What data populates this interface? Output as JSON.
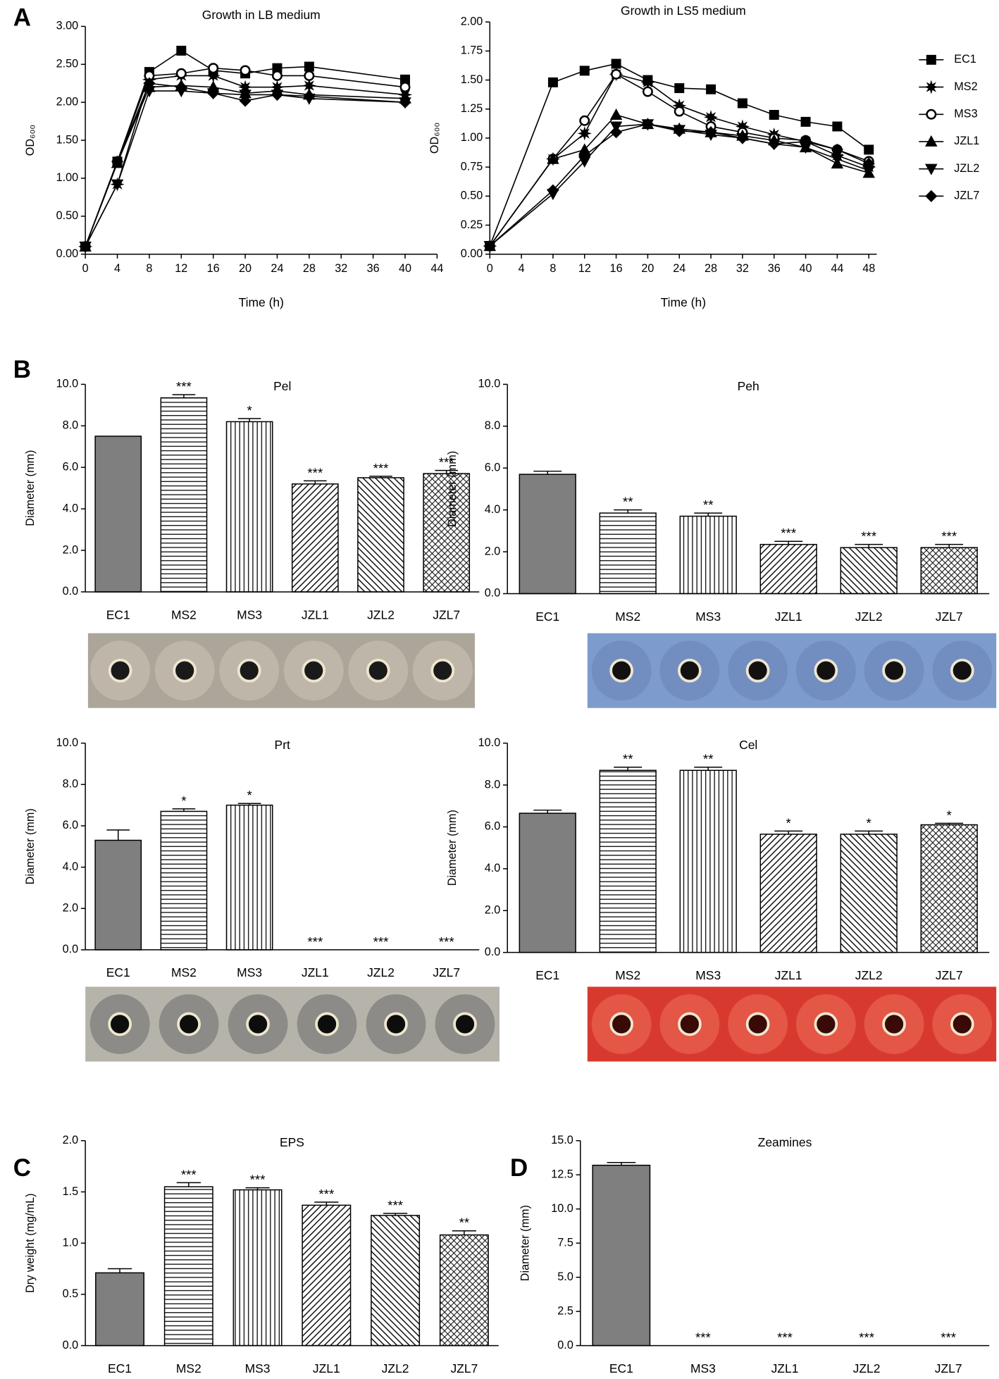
{
  "chart_data": [
    {
      "type": "line",
      "panel": "A",
      "title": "Growth in LB medium",
      "xlabel": "Time (h)",
      "ylabel": "OD₆₀₀",
      "x": [
        0,
        4,
        8,
        12,
        16,
        20,
        24,
        28,
        40
      ],
      "xlim": [
        0,
        44
      ],
      "xticks": [
        0,
        4,
        8,
        12,
        16,
        20,
        24,
        28,
        32,
        36,
        40,
        44
      ],
      "ylim": [
        0,
        3
      ],
      "yticks": [
        {
          "value": 0,
          "label": "0.00"
        },
        {
          "value": 0.5,
          "label": "0.50"
        },
        {
          "value": 1,
          "label": "1.00"
        },
        {
          "value": 1.5,
          "label": "1.50"
        },
        {
          "value": 2,
          "label": "2.00"
        },
        {
          "value": 2.5,
          "label": "2.50"
        },
        {
          "value": 3,
          "label": "3.00"
        }
      ],
      "series": [
        {
          "marker": "square",
          "color": "#000000",
          "values": [
            0.1,
            1.22,
            2.4,
            2.68,
            2.42,
            2.38,
            2.45,
            2.47,
            2.3
          ]
        },
        {
          "marker": "star",
          "color": "#000000",
          "values": [
            0.1,
            0.92,
            2.3,
            2.35,
            2.35,
            2.2,
            2.2,
            2.22,
            2.1
          ]
        },
        {
          "marker": "open-circle",
          "color": "#000000",
          "values": [
            0.1,
            1.22,
            2.35,
            2.38,
            2.45,
            2.42,
            2.35,
            2.35,
            2.2
          ]
        },
        {
          "marker": "triangle-up",
          "color": "#000000",
          "values": [
            0.1,
            1.2,
            2.2,
            2.22,
            2.2,
            2.12,
            2.15,
            2.1,
            2.05
          ]
        },
        {
          "marker": "triangle-down",
          "color": "#000000",
          "values": [
            0.1,
            0.92,
            2.15,
            2.15,
            2.12,
            2.1,
            2.1,
            2.05,
            2.0
          ]
        },
        {
          "marker": "diamond",
          "color": "#000000",
          "values": [
            0.1,
            1.22,
            2.25,
            2.2,
            2.12,
            2.02,
            2.1,
            2.08,
            2.0
          ]
        }
      ]
    },
    {
      "type": "line",
      "title": "Growth in LS5 medium",
      "xlabel": "Time (h)",
      "ylabel": "OD₆₀₀",
      "legend": "right",
      "x": [
        0,
        8,
        12,
        16,
        20,
        24,
        28,
        32,
        36,
        40,
        44,
        48
      ],
      "xlim": [
        0,
        49
      ],
      "xticks": [
        0,
        4,
        8,
        12,
        16,
        20,
        24,
        28,
        32,
        36,
        40,
        44,
        48
      ],
      "ylim": [
        0,
        2
      ],
      "yticks": [
        {
          "value": 0,
          "label": "0.00"
        },
        {
          "value": 0.25,
          "label": "0.25"
        },
        {
          "value": 0.5,
          "label": "0.50"
        },
        {
          "value": 0.75,
          "label": "0.75"
        },
        {
          "value": 1,
          "label": "1.00"
        },
        {
          "value": 1.25,
          "label": "1.25"
        },
        {
          "value": 1.5,
          "label": "1.50"
        },
        {
          "value": 1.75,
          "label": "1.75"
        },
        {
          "value": 2,
          "label": "2.00"
        }
      ],
      "series": [
        {
          "name": "EC1",
          "marker": "square",
          "color": "#000000",
          "values": [
            0.07,
            1.48,
            1.58,
            1.64,
            1.5,
            1.43,
            1.42,
            1.3,
            1.2,
            1.14,
            1.1,
            0.9
          ]
        },
        {
          "name": "MS2",
          "marker": "star",
          "color": "#000000",
          "values": [
            0.07,
            0.82,
            1.04,
            1.55,
            1.48,
            1.28,
            1.18,
            1.1,
            1.03,
            0.97,
            0.85,
            0.75
          ]
        },
        {
          "name": "MS3",
          "marker": "open-circle",
          "color": "#000000",
          "values": [
            0.07,
            0.82,
            1.15,
            1.55,
            1.4,
            1.23,
            1.1,
            1.05,
            1.0,
            0.98,
            0.9,
            0.8
          ]
        },
        {
          "name": "JZL1",
          "marker": "triangle-up",
          "color": "#000000",
          "values": [
            0.07,
            0.82,
            0.9,
            1.2,
            1.12,
            1.08,
            1.05,
            1.02,
            0.98,
            0.92,
            0.78,
            0.7
          ]
        },
        {
          "name": "JZL2",
          "marker": "triangle-down",
          "color": "#000000",
          "values": [
            0.07,
            0.52,
            0.8,
            1.1,
            1.12,
            1.07,
            1.03,
            1.0,
            0.95,
            0.92,
            0.82,
            0.72
          ]
        },
        {
          "name": "JZL7",
          "marker": "diamond",
          "color": "#000000",
          "values": [
            0.07,
            0.55,
            0.85,
            1.05,
            1.12,
            1.06,
            1.05,
            1.0,
            0.95,
            0.97,
            0.9,
            0.78
          ]
        }
      ]
    },
    {
      "type": "bar",
      "panel": "B",
      "title": "Pel",
      "ylabel": "Diameter (mm)",
      "categories": [
        "EC1",
        "MS2",
        "MS3",
        "JZL1",
        "JZL2",
        "JZL7"
      ],
      "values": [
        7.5,
        9.35,
        8.2,
        5.2,
        5.5,
        5.7
      ],
      "errors": [
        0,
        0.15,
        0.15,
        0.15,
        0.07,
        0.15
      ],
      "annotations": [
        null,
        "***",
        "*",
        "***",
        "***",
        "***"
      ],
      "patterns": [
        "solid",
        "horizontal",
        "vertical",
        "diagonal",
        "anti-diagonal",
        "crosshatch"
      ],
      "color": "#7f7f7f",
      "ylim": [
        0,
        10
      ],
      "yticks": [
        {
          "value": 0,
          "label": "0.0"
        },
        {
          "value": 2,
          "label": "2.0"
        },
        {
          "value": 4,
          "label": "4.0"
        },
        {
          "value": 6,
          "label": "6.0"
        },
        {
          "value": 8,
          "label": "8.0"
        },
        {
          "value": 10,
          "label": "10.0"
        }
      ]
    },
    {
      "type": "bar",
      "title": "Peh",
      "ylabel": "Diameter (mm)",
      "categories": [
        "EC1",
        "MS2",
        "MS3",
        "JZL1",
        "JZL2",
        "JZL7"
      ],
      "values": [
        5.7,
        3.85,
        3.7,
        2.35,
        2.2,
        2.2
      ],
      "errors": [
        0.15,
        0.15,
        0.15,
        0.15,
        0.15,
        0.15
      ],
      "annotations": [
        null,
        "**",
        "**",
        "***",
        "***",
        "***"
      ],
      "patterns": [
        "solid",
        "horizontal",
        "vertical",
        "diagonal",
        "anti-diagonal",
        "crosshatch"
      ],
      "color": "#7f7f7f",
      "ylim": [
        0,
        10
      ],
      "yticks": [
        {
          "value": 0,
          "label": "0.0"
        },
        {
          "value": 2,
          "label": "2.0"
        },
        {
          "value": 4,
          "label": "4.0"
        },
        {
          "value": 6,
          "label": "6.0"
        },
        {
          "value": 8,
          "label": "8.0"
        },
        {
          "value": 10,
          "label": "10.0"
        }
      ]
    },
    {
      "type": "bar",
      "title": "Prt",
      "ylabel": "Diameter (mm)",
      "categories": [
        "EC1",
        "MS2",
        "MS3",
        "JZL1",
        "JZL2",
        "JZL7"
      ],
      "values": [
        5.3,
        6.7,
        7.0,
        0,
        0,
        0
      ],
      "errors": [
        0.5,
        0.12,
        0.08,
        0,
        0,
        0
      ],
      "annotations": [
        null,
        "*",
        "*",
        "***",
        "***",
        "***"
      ],
      "patterns": [
        "solid",
        "horizontal",
        "vertical",
        "diagonal",
        "anti-diagonal",
        "crosshatch"
      ],
      "color": "#7f7f7f",
      "ylim": [
        0,
        10
      ],
      "yticks": [
        {
          "value": 0,
          "label": "0.0"
        },
        {
          "value": 2,
          "label": "2.0"
        },
        {
          "value": 4,
          "label": "4.0"
        },
        {
          "value": 6,
          "label": "6.0"
        },
        {
          "value": 8,
          "label": "8.0"
        },
        {
          "value": 10,
          "label": "10.0"
        }
      ]
    },
    {
      "type": "bar",
      "title": "Cel",
      "ylabel": "Diameter (mm)",
      "categories": [
        "EC1",
        "MS2",
        "MS3",
        "JZL1",
        "JZL2",
        "JZL7"
      ],
      "values": [
        6.65,
        8.7,
        8.7,
        5.65,
        5.65,
        6.1
      ],
      "errors": [
        0.15,
        0.15,
        0.15,
        0.15,
        0.15,
        0.07
      ],
      "annotations": [
        null,
        "**",
        "**",
        "*",
        "*",
        "*"
      ],
      "patterns": [
        "solid",
        "horizontal",
        "vertical",
        "diagonal",
        "anti-diagonal",
        "crosshatch"
      ],
      "color": "#7f7f7f",
      "ylim": [
        0,
        10
      ],
      "yticks": [
        {
          "value": 0,
          "label": "0.0"
        },
        {
          "value": 2,
          "label": "2.0"
        },
        {
          "value": 4,
          "label": "4.0"
        },
        {
          "value": 6,
          "label": "6.0"
        },
        {
          "value": 8,
          "label": "8.0"
        },
        {
          "value": 10,
          "label": "10.0"
        }
      ]
    },
    {
      "type": "bar",
      "panel": "C",
      "title": "EPS",
      "ylabel": "Dry weight (mg/mL)",
      "categories": [
        "EC1",
        "MS2",
        "MS3",
        "JZL1",
        "JZL2",
        "JZL7"
      ],
      "values": [
        0.71,
        1.55,
        1.52,
        1.37,
        1.27,
        1.08
      ],
      "errors": [
        0.04,
        0.04,
        0.02,
        0.03,
        0.02,
        0.04
      ],
      "annotations": [
        null,
        "***",
        "***",
        "***",
        "***",
        "**"
      ],
      "patterns": [
        "solid",
        "horizontal",
        "vertical",
        "diagonal",
        "anti-diagonal",
        "crosshatch"
      ],
      "color": "#7f7f7f",
      "ylim": [
        0,
        2
      ],
      "yticks": [
        {
          "value": 0,
          "label": "0.0"
        },
        {
          "value": 0.5,
          "label": "0.5"
        },
        {
          "value": 1,
          "label": "1.0"
        },
        {
          "value": 1.5,
          "label": "1.5"
        },
        {
          "value": 2,
          "label": "2.0"
        }
      ]
    },
    {
      "type": "bar",
      "panel": "D",
      "title": "Zeamines",
      "ylabel": "Diameter (mm)",
      "categories": [
        "EC1",
        "MS3",
        "JZL1",
        "JZL2",
        "JZL7"
      ],
      "values": [
        13.2,
        0,
        0,
        0,
        0
      ],
      "errors": [
        0.2,
        0,
        0,
        0,
        0
      ],
      "annotations": [
        null,
        "***",
        "***",
        "***",
        "***"
      ],
      "patterns": [
        "solid",
        "vertical",
        "diagonal",
        "anti-diagonal",
        "crosshatch"
      ],
      "color": "#7f7f7f",
      "ylim": [
        0,
        15
      ],
      "yticks": [
        {
          "value": 0,
          "label": "0.0"
        },
        {
          "value": 2.5,
          "label": "2.5"
        },
        {
          "value": 5,
          "label": "5.0"
        },
        {
          "value": 7.5,
          "label": "7.5"
        },
        {
          "value": 10,
          "label": "10.0"
        },
        {
          "value": 12.5,
          "label": "12.5"
        },
        {
          "value": 15,
          "label": "15.0"
        }
      ]
    }
  ]
}
